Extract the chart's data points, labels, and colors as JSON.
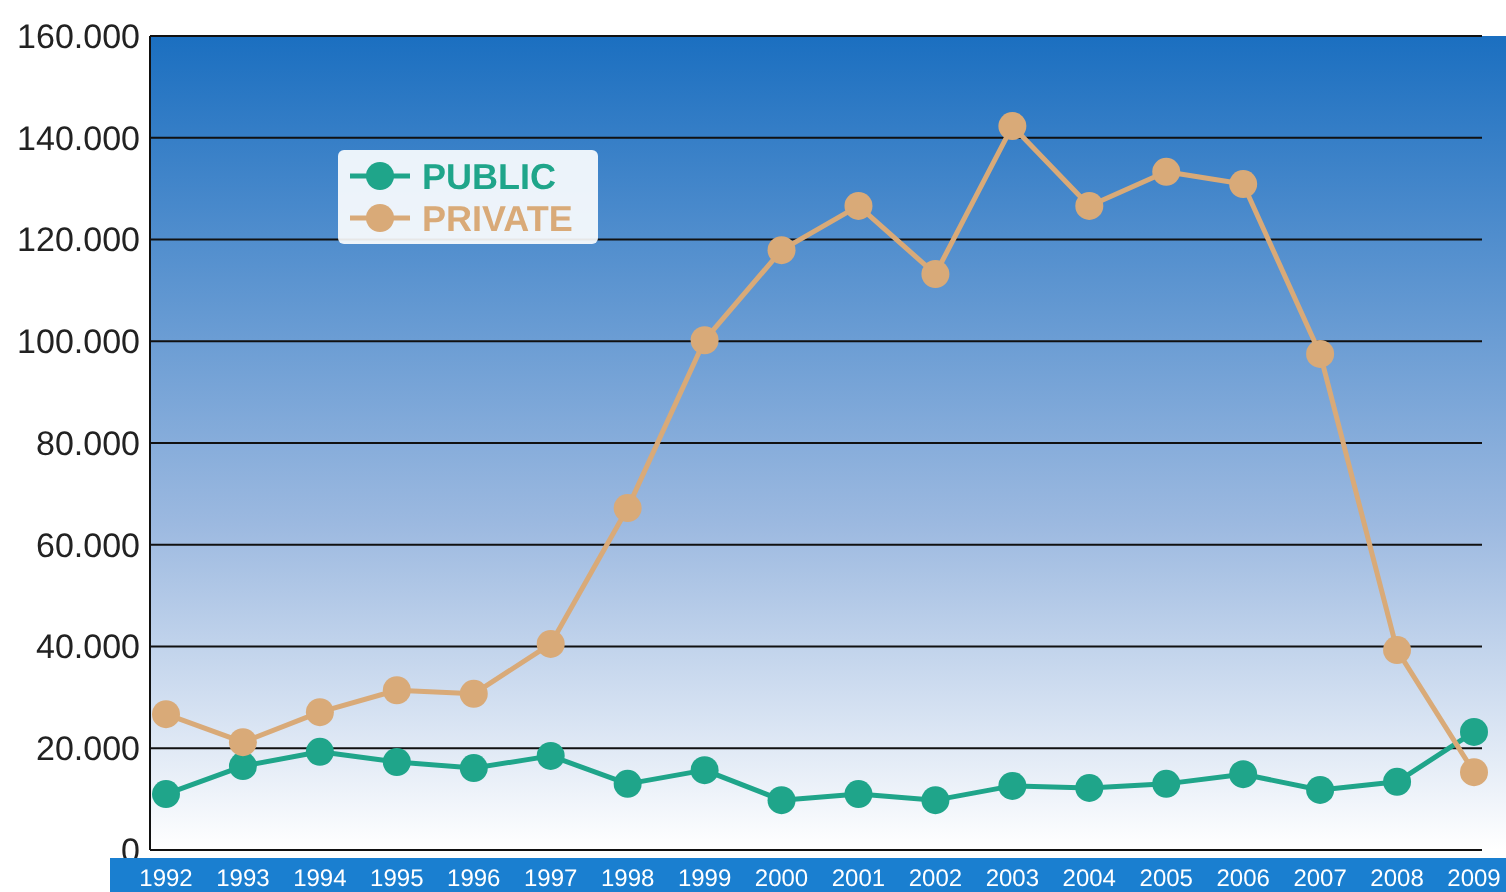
{
  "chart_data": {
    "type": "line",
    "categories": [
      "1992",
      "1993",
      "1994",
      "1995",
      "1996",
      "1997",
      "1998",
      "1999",
      "2000",
      "2001",
      "2002",
      "2003",
      "2004",
      "2005",
      "2006",
      "2007",
      "2008",
      "2009"
    ],
    "series": [
      {
        "name": "PUBLIC",
        "color": "#1fa58a",
        "values": [
          11000,
          16500,
          19300,
          17300,
          16100,
          18500,
          13000,
          15700,
          9800,
          11000,
          9800,
          12600,
          12200,
          13000,
          14900,
          11800,
          13400,
          23200
        ]
      },
      {
        "name": "PRIVATE",
        "color": "#d9aa78",
        "values": [
          26700,
          21200,
          27100,
          31400,
          30700,
          40500,
          67200,
          100200,
          117900,
          126600,
          113200,
          142300,
          126600,
          133300,
          130900,
          97500,
          39300,
          15300
        ]
      }
    ],
    "ylim": [
      0,
      160000
    ],
    "yticks": [
      0,
      {
        "value": 20000,
        "label": "20.000"
      },
      {
        "value": 40000,
        "label": "40.000"
      },
      {
        "value": 60000,
        "label": "60.000"
      },
      {
        "value": 80000,
        "label": "80.000"
      },
      {
        "value": 100000,
        "label": "100.000"
      },
      {
        "value": 120000,
        "label": "120.000"
      },
      {
        "value": 140000,
        "label": "140.000"
      },
      {
        "value": 160000,
        "label": "160.000"
      }
    ],
    "grid": "y",
    "legend": "top left",
    "marker": "circle",
    "line_style": "solid"
  }
}
